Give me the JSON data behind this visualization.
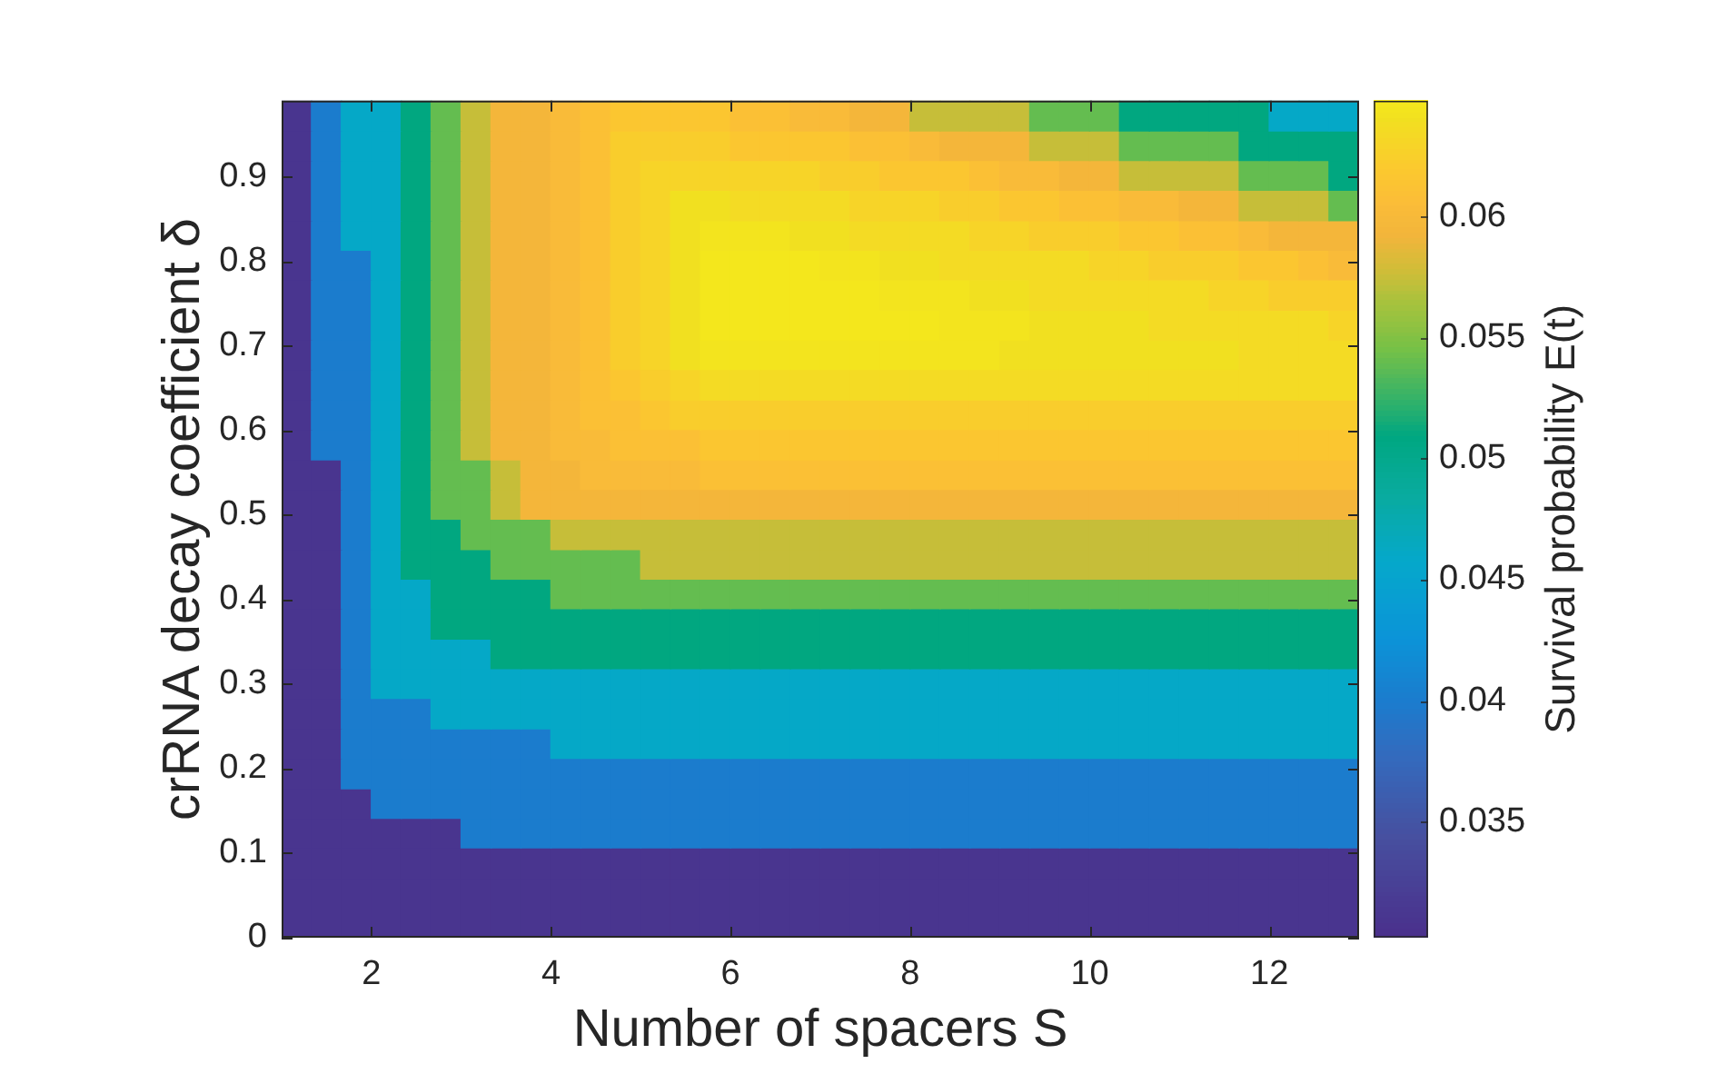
{
  "chart_data": {
    "type": "scatter",
    "marker": "square",
    "xlabel": "Number of spacers S",
    "ylabel": "crRNA decay coefficient δ",
    "clabel": "Survival probability E(t)",
    "x": [
      1.167,
      1.5,
      1.833,
      2.167,
      2.5,
      2.833,
      3.167,
      3.5,
      3.833,
      4.167,
      4.5,
      4.833,
      5.167,
      5.5,
      5.833,
      6.167,
      6.5,
      6.833,
      7.167,
      7.5,
      7.833,
      8.167,
      8.5,
      8.833,
      9.167,
      9.5,
      9.833,
      10.167,
      10.5,
      10.833,
      11.167,
      11.5,
      11.833,
      12.167,
      12.5,
      12.833,
      1.167,
      1.5,
      1.833,
      2.167,
      2.5,
      2.833,
      3.167,
      3.5,
      3.833,
      4.167,
      4.5,
      4.833,
      5.167,
      5.5,
      5.833,
      6.167,
      6.5,
      6.833,
      7.167,
      7.5,
      7.833,
      8.167,
      8.5,
      8.833,
      9.167,
      9.5,
      9.833,
      10.167,
      10.5,
      10.833,
      11.167,
      11.5,
      11.833,
      12.167,
      12.5,
      12.833,
      1.167,
      1.5,
      1.833,
      2.167,
      2.5,
      2.833,
      3.167,
      3.5,
      3.833,
      4.167,
      4.5,
      4.833,
      5.167,
      5.5,
      5.833,
      6.167,
      6.5,
      6.833,
      7.167,
      7.5,
      7.833,
      8.167,
      8.5,
      8.833,
      9.167,
      9.5,
      9.833,
      10.167,
      10.5,
      10.833,
      11.167,
      11.5,
      11.833,
      12.167,
      12.5,
      12.833,
      1.167,
      1.5,
      1.833,
      2.167,
      2.5,
      2.833,
      3.167,
      3.5,
      3.833,
      4.167,
      4.5,
      4.833,
      5.167,
      5.5,
      5.833,
      6.167,
      6.5,
      6.833,
      7.167,
      7.5,
      7.833,
      8.167,
      8.5,
      8.833,
      9.167,
      9.5,
      9.833,
      10.167,
      10.5,
      10.833,
      11.167,
      11.5,
      11.833,
      12.167,
      12.5,
      12.833,
      1.167,
      1.5,
      1.833,
      2.167,
      2.5,
      2.833,
      3.167,
      3.5,
      3.833,
      4.167,
      4.5,
      4.833,
      5.167,
      5.5,
      5.833,
      6.167,
      6.5,
      6.833,
      7.167,
      7.5,
      7.833,
      8.167,
      8.5,
      8.833,
      9.167,
      9.5,
      9.833,
      10.167,
      10.5,
      10.833,
      11.167,
      11.5,
      11.833,
      12.167,
      12.5,
      12.833,
      1.167,
      1.5,
      1.833,
      2.167,
      2.5,
      2.833,
      3.167,
      3.5,
      3.833,
      4.167,
      4.5,
      4.833,
      5.167,
      5.5,
      5.833,
      6.167,
      6.5,
      6.833,
      7.167,
      7.5,
      7.833,
      8.167,
      8.5,
      8.833,
      9.167,
      9.5,
      9.833,
      10.167,
      10.5,
      10.833,
      11.167,
      11.5,
      11.833,
      12.167,
      12.5,
      12.833,
      1.167,
      1.5,
      1.833,
      2.167,
      2.5,
      2.833,
      3.167,
      3.5,
      3.833,
      4.167,
      4.5,
      4.833,
      5.167,
      5.5,
      5.833,
      6.167,
      6.5,
      6.833,
      7.167,
      7.5,
      7.833,
      8.167,
      8.5,
      8.833,
      9.167,
      9.5,
      9.833,
      10.167,
      10.5,
      10.833,
      11.167,
      11.5,
      11.833,
      12.167,
      12.5,
      12.833,
      1.167,
      1.5,
      1.833,
      2.167,
      2.5,
      2.833,
      3.167,
      3.5,
      3.833,
      4.167,
      4.5,
      4.833,
      5.167,
      5.5,
      5.833,
      6.167,
      6.5,
      6.833,
      7.167,
      7.5,
      7.833,
      8.167,
      8.5,
      8.833,
      9.167,
      9.5,
      9.833,
      10.167,
      10.5,
      10.833,
      11.167,
      11.5,
      11.833,
      12.167,
      12.5,
      12.833,
      1.167,
      1.5,
      1.833,
      2.167,
      2.5,
      2.833,
      3.167,
      3.5,
      3.833,
      4.167,
      4.5,
      4.833,
      5.167,
      5.5,
      5.833,
      6.167,
      6.5,
      6.833,
      7.167,
      7.5,
      7.833,
      8.167,
      8.5,
      8.833,
      9.167,
      9.5,
      9.833,
      10.167,
      10.5,
      10.833,
      11.167,
      11.5,
      11.833,
      12.167,
      12.5,
      12.833,
      1.167,
      1.5,
      1.833,
      2.167,
      2.5,
      2.833,
      3.167,
      3.5,
      3.833,
      4.167,
      4.5,
      4.833,
      5.167,
      5.5,
      5.833,
      6.167,
      6.5,
      6.833,
      7.167,
      7.5,
      7.833,
      8.167,
      8.5,
      8.833,
      9.167,
      9.5,
      9.833,
      10.167,
      10.5,
      10.833,
      11.167,
      11.5,
      11.833,
      12.167,
      12.5,
      12.833,
      1.167,
      1.5,
      1.833,
      2.167,
      2.5,
      2.833,
      3.167,
      3.5,
      3.833,
      4.167,
      4.5,
      4.833,
      5.167,
      5.5,
      5.833,
      6.167,
      6.5,
      6.833,
      7.167,
      7.5,
      7.833,
      8.167,
      8.5,
      8.833,
      9.167,
      9.5,
      9.833,
      10.167,
      10.5,
      10.833,
      11.167,
      11.5,
      11.833,
      12.167,
      12.5,
      12.833,
      1.167,
      1.5,
      1.833,
      2.167,
      2.5,
      2.833,
      3.167,
      3.5,
      3.833,
      4.167,
      4.5,
      4.833,
      5.167,
      5.5,
      5.833,
      6.167,
      6.5,
      6.833,
      7.167,
      7.5,
      7.833,
      8.167,
      8.5,
      8.833,
      9.167,
      9.5,
      9.833,
      10.167,
      10.5,
      10.833,
      11.167,
      11.5,
      11.833,
      12.167,
      12.5,
      12.833,
      1.167,
      1.5,
      1.833,
      2.167,
      2.5,
      2.833,
      3.167,
      3.5,
      3.833,
      4.167,
      4.5,
      4.833,
      5.167,
      5.5,
      5.833,
      6.167,
      6.5,
      6.833,
      7.167,
      7.5,
      7.833,
      8.167,
      8.5,
      8.833,
      9.167,
      9.5,
      9.833,
      10.167,
      10.5,
      10.833,
      11.167,
      11.5,
      11.833,
      12.167,
      12.5,
      12.833,
      1.167,
      1.5,
      1.833,
      2.167,
      2.5,
      2.833,
      3.167,
      3.5,
      3.833,
      4.167,
      4.5,
      4.833,
      5.167,
      5.5,
      5.833,
      6.167,
      6.5,
      6.833,
      7.167,
      7.5,
      7.833,
      8.167,
      8.5,
      8.833,
      9.167,
      9.5,
      9.833,
      10.167,
      10.5,
      10.833,
      11.167,
      11.5,
      11.833,
      12.167,
      12.5,
      12.833,
      1.167,
      1.5,
      1.833,
      2.167,
      2.5,
      2.833,
      3.167,
      3.5,
      3.833,
      4.167,
      4.5,
      4.833,
      5.167,
      5.5,
      5.833,
      6.167,
      6.5,
      6.833,
      7.167,
      7.5,
      7.833,
      8.167,
      8.5,
      8.833,
      9.167,
      9.5,
      9.833,
      10.167,
      10.5,
      10.833,
      11.167,
      11.5,
      11.833,
      12.167,
      12.5,
      12.833,
      1.167,
      1.5,
      1.833,
      2.167,
      2.5,
      2.833,
      3.167,
      3.5,
      3.833,
      4.167,
      4.5,
      4.833,
      5.167,
      5.5,
      5.833,
      6.167,
      6.5,
      6.833,
      7.167,
      7.5,
      7.833,
      8.167,
      8.5,
      8.833,
      9.167,
      9.5,
      9.833,
      10.167,
      10.5,
      10.833,
      11.167,
      11.5,
      11.833,
      12.167,
      12.5,
      12.833,
      1.167,
      1.5,
      1.833,
      2.167,
      2.5,
      2.833,
      3.167,
      3.5,
      3.833,
      4.167,
      4.5,
      4.833,
      5.167,
      5.5,
      5.833,
      6.167,
      6.5,
      6.833,
      7.167,
      7.5,
      7.833,
      8.167,
      8.5,
      8.833,
      9.167,
      9.5,
      9.833,
      10.167,
      10.5,
      10.833,
      11.167,
      11.5,
      11.833,
      12.167,
      12.5,
      12.833,
      1.167,
      1.5,
      1.833,
      2.167,
      2.5,
      2.833,
      3.167,
      3.5,
      3.833,
      4.167,
      4.5,
      4.833,
      5.167,
      5.5,
      5.833,
      6.167,
      6.5,
      6.833,
      7.167,
      7.5,
      7.833,
      8.167,
      8.5,
      8.833,
      9.167,
      9.5,
      9.833,
      10.167,
      10.5,
      10.833,
      11.167,
      11.5,
      11.833,
      12.167,
      12.5,
      12.833,
      1.167,
      1.5,
      1.833,
      2.167,
      2.5,
      2.833,
      3.167,
      3.5,
      3.833,
      4.167,
      4.5,
      4.833,
      5.167,
      5.5,
      5.833,
      6.167,
      6.5,
      6.833,
      7.167,
      7.5,
      7.833,
      8.167,
      8.5,
      8.833,
      9.167,
      9.5,
      9.833,
      10.167,
      10.5,
      10.833,
      11.167,
      11.5,
      11.833,
      12.167,
      12.5,
      12.833,
      1.167,
      1.5,
      1.833,
      2.167,
      2.5,
      2.833,
      3.167,
      3.5,
      3.833,
      4.167,
      4.5,
      4.833,
      5.167,
      5.5,
      5.833,
      6.167,
      6.5,
      6.833,
      7.167,
      7.5,
      7.833,
      8.167,
      8.5,
      8.833,
      9.167,
      9.5,
      9.833,
      10.167,
      10.5,
      10.833,
      11.167,
      11.5,
      11.833,
      12.167,
      12.5,
      12.833,
      1.167,
      1.5,
      1.833,
      2.167,
      2.5,
      2.833,
      3.167,
      3.5,
      3.833,
      4.167,
      4.5,
      4.833,
      5.167,
      5.5,
      5.833,
      6.167,
      6.5,
      6.833,
      7.167,
      7.5,
      7.833,
      8.167,
      8.5,
      8.833,
      9.167,
      9.5,
      9.833,
      10.167,
      10.5,
      10.833,
      11.167,
      11.5,
      11.833,
      12.167,
      12.5,
      12.833,
      1.167,
      1.5,
      1.833,
      2.167,
      2.5,
      2.833,
      3.167,
      3.5,
      3.833,
      4.167,
      4.5,
      4.833,
      5.167,
      5.5,
      5.833,
      6.167,
      6.5,
      6.833,
      7.167,
      7.5,
      7.833,
      8.167,
      8.5,
      8.833,
      9.167,
      9.5,
      9.833,
      10.167,
      10.5,
      10.833,
      11.167,
      11.5,
      11.833,
      12.167,
      12.5,
      12.833,
      1.167,
      1.5,
      1.833,
      2.167,
      2.5,
      2.833,
      3.167,
      3.5,
      3.833,
      4.167,
      4.5,
      4.833,
      5.167,
      5.5,
      5.833,
      6.167,
      6.5,
      6.833,
      7.167,
      7.5,
      7.833,
      8.167,
      8.5,
      8.833,
      9.167,
      9.5,
      9.833,
      10.167,
      10.5,
      10.833,
      11.167,
      11.5,
      11.833,
      12.167,
      12.5,
      12.833,
      1.167,
      1.5,
      1.833,
      2.167,
      2.5,
      2.833,
      3.167,
      3.5,
      3.833,
      4.167,
      4.5,
      4.833,
      5.167,
      5.5,
      5.833,
      6.167,
      6.5,
      6.833,
      7.167,
      7.5,
      7.833,
      8.167,
      8.5,
      8.833,
      9.167,
      9.5,
      9.833,
      10.167,
      10.5,
      10.833,
      11.167,
      11.5,
      11.833,
      12.167,
      12.5,
      12.833,
      1.167,
      1.5,
      1.833,
      2.167,
      2.5,
      2.833,
      3.167,
      3.5,
      3.833,
      4.167,
      4.5,
      4.833,
      5.167,
      5.5,
      5.833,
      6.167,
      6.5,
      6.833,
      7.167,
      7.5,
      7.833,
      8.167,
      8.5,
      8.833,
      9.167,
      9.5,
      9.833,
      10.167,
      10.5,
      10.833,
      11.167,
      11.5,
      11.833,
      12.167,
      12.5,
      12.833,
      1.167,
      1.5,
      1.833,
      2.167,
      2.5,
      2.833,
      3.167,
      3.5,
      3.833,
      4.167,
      4.5,
      4.833,
      5.167,
      5.5,
      5.833,
      6.167,
      6.5,
      6.833,
      7.167,
      7.5,
      7.833,
      8.167,
      8.5,
      8.833,
      9.167,
      9.5,
      9.833,
      10.167,
      10.5,
      10.833,
      11.167,
      11.5,
      11.833,
      12.167,
      12.5,
      12.833,
      1.167,
      1.5,
      1.833,
      2.167,
      2.5,
      2.833,
      3.167,
      3.5,
      3.833,
      4.167,
      4.5,
      4.833,
      5.167,
      5.5,
      5.833,
      6.167,
      6.5,
      6.833,
      7.167,
      7.5,
      7.833,
      8.167,
      8.5,
      8.833,
      9.167,
      9.5,
      9.833,
      10.167,
      10.5,
      10.833,
      11.167,
      11.5,
      11.833,
      12.167,
      12.5,
      12.833,
      1.167,
      1.5,
      1.833,
      2.167,
      2.5,
      2.833,
      3.167,
      3.5,
      3.833,
      4.167,
      4.5,
      4.833,
      5.167,
      5.5,
      5.833,
      6.167,
      6.5,
      6.833,
      7.167,
      7.5,
      7.833,
      8.167,
      8.5,
      8.833,
      9.167,
      9.5,
      9.833,
      10.167,
      10.5,
      10.833,
      11.167,
      11.5,
      11.833,
      12.167,
      12.5,
      12.833
    ],
    "values": [
      0.018,
      0.018,
      0.018,
      0.018,
      0.018,
      0.018,
      0.018,
      0.018,
      0.018,
      0.018,
      0.018,
      0.018,
      0.018,
      0.018,
      0.018,
      0.018,
      0.018,
      0.018,
      0.018,
      0.018,
      0.018,
      0.018,
      0.018,
      0.018,
      0.018,
      0.018,
      0.018,
      0.018,
      0.018,
      0.018,
      0.018,
      0.018,
      0.018,
      0.018,
      0.018,
      0.018,
      0.053,
      0.053,
      0.053,
      0.053,
      0.053,
      0.053,
      0.053,
      0.053,
      0.053,
      0.053,
      0.053,
      0.053,
      0.053,
      0.053,
      0.053,
      0.053,
      0.053,
      0.053,
      0.053,
      0.053,
      0.053,
      0.053,
      0.053,
      0.053,
      0.053,
      0.053,
      0.053,
      0.053,
      0.053,
      0.053,
      0.053,
      0.053,
      0.053,
      0.053,
      0.053,
      0.053,
      0.088,
      0.088,
      0.088,
      0.088,
      0.088,
      0.088,
      0.088,
      0.088,
      0.088,
      0.088,
      0.088,
      0.088,
      0.088,
      0.088,
      0.088,
      0.088,
      0.088,
      0.088,
      0.088,
      0.088,
      0.088,
      0.088,
      0.088,
      0.088,
      0.088,
      0.088,
      0.088,
      0.088,
      0.088,
      0.088,
      0.088,
      0.088,
      0.088,
      0.088,
      0.088,
      0.088,
      0.124,
      0.124,
      0.124,
      0.124,
      0.124,
      0.124,
      0.124,
      0.124,
      0.124,
      0.124,
      0.124,
      0.124,
      0.124,
      0.124,
      0.124,
      0.124,
      0.124,
      0.124,
      0.124,
      0.124,
      0.124,
      0.124,
      0.124,
      0.124,
      0.124,
      0.124,
      0.124,
      0.124,
      0.124,
      0.124,
      0.124,
      0.124,
      0.124,
      0.124,
      0.124,
      0.124,
      0.159,
      0.159,
      0.159,
      0.159,
      0.159,
      0.159,
      0.159,
      0.159,
      0.159,
      0.159,
      0.159,
      0.159,
      0.159,
      0.159,
      0.159,
      0.159,
      0.159,
      0.159,
      0.159,
      0.159,
      0.159,
      0.159,
      0.159,
      0.159,
      0.159,
      0.159,
      0.159,
      0.159,
      0.159,
      0.159,
      0.159,
      0.159,
      0.159,
      0.159,
      0.159,
      0.159,
      0.194,
      0.194,
      0.194,
      0.194,
      0.194,
      0.194,
      0.194,
      0.194,
      0.194,
      0.194,
      0.194,
      0.194,
      0.194,
      0.194,
      0.194,
      0.194,
      0.194,
      0.194,
      0.194,
      0.194,
      0.194,
      0.194,
      0.194,
      0.194,
      0.194,
      0.194,
      0.194,
      0.194,
      0.194,
      0.194,
      0.194,
      0.194,
      0.194,
      0.194,
      0.194,
      0.194,
      0.23,
      0.23,
      0.23,
      0.23,
      0.23,
      0.23,
      0.23,
      0.23,
      0.23,
      0.23,
      0.23,
      0.23,
      0.23,
      0.23,
      0.23,
      0.23,
      0.23,
      0.23,
      0.23,
      0.23,
      0.23,
      0.23,
      0.23,
      0.23,
      0.23,
      0.23,
      0.23,
      0.23,
      0.23,
      0.23,
      0.23,
      0.23,
      0.23,
      0.23,
      0.23,
      0.23,
      0.265,
      0.265,
      0.265,
      0.265,
      0.265,
      0.265,
      0.265,
      0.265,
      0.265,
      0.265,
      0.265,
      0.265,
      0.265,
      0.265,
      0.265,
      0.265,
      0.265,
      0.265,
      0.265,
      0.265,
      0.265,
      0.265,
      0.265,
      0.265,
      0.265,
      0.265,
      0.265,
      0.265,
      0.265,
      0.265,
      0.265,
      0.265,
      0.265,
      0.265,
      0.265,
      0.265,
      0.301,
      0.301,
      0.301,
      0.301,
      0.301,
      0.301,
      0.301,
      0.301,
      0.301,
      0.301,
      0.301,
      0.301,
      0.301,
      0.301,
      0.301,
      0.301,
      0.301,
      0.301,
      0.301,
      0.301,
      0.301,
      0.301,
      0.301,
      0.301,
      0.301,
      0.301,
      0.301,
      0.301,
      0.301,
      0.301,
      0.301,
      0.301,
      0.301,
      0.301,
      0.301,
      0.301,
      0.336,
      0.336,
      0.336,
      0.336,
      0.336,
      0.336,
      0.336,
      0.336,
      0.336,
      0.336,
      0.336,
      0.336,
      0.336,
      0.336,
      0.336,
      0.336,
      0.336,
      0.336,
      0.336,
      0.336,
      0.336,
      0.336,
      0.336,
      0.336,
      0.336,
      0.336,
      0.336,
      0.336,
      0.336,
      0.336,
      0.336,
      0.336,
      0.336,
      0.336,
      0.336,
      0.336,
      0.371,
      0.371,
      0.371,
      0.371,
      0.371,
      0.371,
      0.371,
      0.371,
      0.371,
      0.371,
      0.371,
      0.371,
      0.371,
      0.371,
      0.371,
      0.371,
      0.371,
      0.371,
      0.371,
      0.371,
      0.371,
      0.371,
      0.371,
      0.371,
      0.371,
      0.371,
      0.371,
      0.371,
      0.371,
      0.371,
      0.371,
      0.371,
      0.371,
      0.371,
      0.371,
      0.371,
      0.407,
      0.407,
      0.407,
      0.407,
      0.407,
      0.407,
      0.407,
      0.407,
      0.407,
      0.407,
      0.407,
      0.407,
      0.407,
      0.407,
      0.407,
      0.407,
      0.407,
      0.407,
      0.407,
      0.407,
      0.407,
      0.407,
      0.407,
      0.407,
      0.407,
      0.407,
      0.407,
      0.407,
      0.407,
      0.407,
      0.407,
      0.407,
      0.407,
      0.407,
      0.407,
      0.407,
      0.442,
      0.442,
      0.442,
      0.442,
      0.442,
      0.442,
      0.442,
      0.442,
      0.442,
      0.442,
      0.442,
      0.442,
      0.442,
      0.442,
      0.442,
      0.442,
      0.442,
      0.442,
      0.442,
      0.442,
      0.442,
      0.442,
      0.442,
      0.442,
      0.442,
      0.442,
      0.442,
      0.442,
      0.442,
      0.442,
      0.442,
      0.442,
      0.442,
      0.442,
      0.442,
      0.442,
      0.477,
      0.477,
      0.477,
      0.477,
      0.477,
      0.477,
      0.477,
      0.477,
      0.477,
      0.477,
      0.477,
      0.477,
      0.477,
      0.477,
      0.477,
      0.477,
      0.477,
      0.477,
      0.477,
      0.477,
      0.477,
      0.477,
      0.477,
      0.477,
      0.477,
      0.477,
      0.477,
      0.477,
      0.477,
      0.477,
      0.477,
      0.477,
      0.477,
      0.477,
      0.477,
      0.477,
      0.513,
      0.513,
      0.513,
      0.513,
      0.513,
      0.513,
      0.513,
      0.513,
      0.513,
      0.513,
      0.513,
      0.513,
      0.513,
      0.513,
      0.513,
      0.513,
      0.513,
      0.513,
      0.513,
      0.513,
      0.513,
      0.513,
      0.513,
      0.513,
      0.513,
      0.513,
      0.513,
      0.513,
      0.513,
      0.513,
      0.513,
      0.513,
      0.513,
      0.513,
      0.513,
      0.513,
      0.548,
      0.548,
      0.548,
      0.548,
      0.548,
      0.548,
      0.548,
      0.548,
      0.548,
      0.548,
      0.548,
      0.548,
      0.548,
      0.548,
      0.548,
      0.548,
      0.548,
      0.548,
      0.548,
      0.548,
      0.548,
      0.548,
      0.548,
      0.548,
      0.548,
      0.548,
      0.548,
      0.548,
      0.548,
      0.548,
      0.548,
      0.548,
      0.548,
      0.548,
      0.548,
      0.548,
      0.583,
      0.583,
      0.583,
      0.583,
      0.583,
      0.583,
      0.583,
      0.583,
      0.583,
      0.583,
      0.583,
      0.583,
      0.583,
      0.583,
      0.583,
      0.583,
      0.583,
      0.583,
      0.583,
      0.583,
      0.583,
      0.583,
      0.583,
      0.583,
      0.583,
      0.583,
      0.583,
      0.583,
      0.583,
      0.583,
      0.583,
      0.583,
      0.583,
      0.583,
      0.583,
      0.583,
      0.619,
      0.619,
      0.619,
      0.619,
      0.619,
      0.619,
      0.619,
      0.619,
      0.619,
      0.619,
      0.619,
      0.619,
      0.619,
      0.619,
      0.619,
      0.619,
      0.619,
      0.619,
      0.619,
      0.619,
      0.619,
      0.619,
      0.619,
      0.619,
      0.619,
      0.619,
      0.619,
      0.619,
      0.619,
      0.619,
      0.619,
      0.619,
      0.619,
      0.619,
      0.619,
      0.619,
      0.654,
      0.654,
      0.654,
      0.654,
      0.654,
      0.654,
      0.654,
      0.654,
      0.654,
      0.654,
      0.654,
      0.654,
      0.654,
      0.654,
      0.654,
      0.654,
      0.654,
      0.654,
      0.654,
      0.654,
      0.654,
      0.654,
      0.654,
      0.654,
      0.654,
      0.654,
      0.654,
      0.654,
      0.654,
      0.654,
      0.654,
      0.654,
      0.654,
      0.654,
      0.654,
      0.654,
      0.69,
      0.69,
      0.69,
      0.69,
      0.69,
      0.69,
      0.69,
      0.69,
      0.69,
      0.69,
      0.69,
      0.69,
      0.69,
      0.69,
      0.69,
      0.69,
      0.69,
      0.69,
      0.69,
      0.69,
      0.69,
      0.69,
      0.69,
      0.69,
      0.69,
      0.69,
      0.69,
      0.69,
      0.69,
      0.69,
      0.69,
      0.69,
      0.69,
      0.69,
      0.69,
      0.69,
      0.725,
      0.725,
      0.725,
      0.725,
      0.725,
      0.725,
      0.725,
      0.725,
      0.725,
      0.725,
      0.725,
      0.725,
      0.725,
      0.725,
      0.725,
      0.725,
      0.725,
      0.725,
      0.725,
      0.725,
      0.725,
      0.725,
      0.725,
      0.725,
      0.725,
      0.725,
      0.725,
      0.725,
      0.725,
      0.725,
      0.725,
      0.725,
      0.725,
      0.725,
      0.725,
      0.725,
      0.76,
      0.76,
      0.76,
      0.76,
      0.76,
      0.76,
      0.76,
      0.76,
      0.76,
      0.76,
      0.76,
      0.76,
      0.76,
      0.76,
      0.76,
      0.76,
      0.76,
      0.76,
      0.76,
      0.76,
      0.76,
      0.76,
      0.76,
      0.76,
      0.76,
      0.76,
      0.76,
      0.76,
      0.76,
      0.76,
      0.76,
      0.76,
      0.76,
      0.76,
      0.76,
      0.76,
      0.796,
      0.796,
      0.796,
      0.796,
      0.796,
      0.796,
      0.796,
      0.796,
      0.796,
      0.796,
      0.796,
      0.796,
      0.796,
      0.796,
      0.796,
      0.796,
      0.796,
      0.796,
      0.796,
      0.796,
      0.796,
      0.796,
      0.796,
      0.796,
      0.796,
      0.796,
      0.796,
      0.796,
      0.796,
      0.796,
      0.796,
      0.796,
      0.796,
      0.796,
      0.796,
      0.796,
      0.831,
      0.831,
      0.831,
      0.831,
      0.831,
      0.831,
      0.831,
      0.831,
      0.831,
      0.831,
      0.831,
      0.831,
      0.831,
      0.831,
      0.831,
      0.831,
      0.831,
      0.831,
      0.831,
      0.831,
      0.831,
      0.831,
      0.831,
      0.831,
      0.831,
      0.831,
      0.831,
      0.831,
      0.831,
      0.831,
      0.831,
      0.831,
      0.831,
      0.831,
      0.831,
      0.831,
      0.866,
      0.866,
      0.866,
      0.866,
      0.866,
      0.866,
      0.866,
      0.866,
      0.866,
      0.866,
      0.866,
      0.866,
      0.866,
      0.866,
      0.866,
      0.866,
      0.866,
      0.866,
      0.866,
      0.866,
      0.866,
      0.866,
      0.866,
      0.866,
      0.866,
      0.866,
      0.866,
      0.866,
      0.866,
      0.866,
      0.866,
      0.866,
      0.866,
      0.866,
      0.866,
      0.866,
      0.902,
      0.902,
      0.902,
      0.902,
      0.902,
      0.902,
      0.902,
      0.902,
      0.902,
      0.902,
      0.902,
      0.902,
      0.902,
      0.902,
      0.902,
      0.902,
      0.902,
      0.902,
      0.902,
      0.902,
      0.902,
      0.902,
      0.902,
      0.902,
      0.902,
      0.902,
      0.902,
      0.902,
      0.902,
      0.902,
      0.902,
      0.902,
      0.902,
      0.902,
      0.902,
      0.902,
      0.937,
      0.937,
      0.937,
      0.937,
      0.937,
      0.937,
      0.937,
      0.937,
      0.937,
      0.937,
      0.937,
      0.937,
      0.937,
      0.937,
      0.937,
      0.937,
      0.937,
      0.937,
      0.937,
      0.937,
      0.937,
      0.937,
      0.937,
      0.937,
      0.937,
      0.937,
      0.937,
      0.937,
      0.937,
      0.937,
      0.937,
      0.937,
      0.937,
      0.937,
      0.937,
      0.937,
      0.972,
      0.972,
      0.972,
      0.972,
      0.972,
      0.972,
      0.972,
      0.972,
      0.972,
      0.972,
      0.972,
      0.972,
      0.972,
      0.972,
      0.972,
      0.972,
      0.972,
      0.972,
      0.972,
      0.972,
      0.972,
      0.972,
      0.972,
      0.972,
      0.972,
      0.972,
      0.972,
      0.972,
      0.972,
      0.972,
      0.972,
      0.972,
      0.972,
      0.972,
      0.972,
      0.972
    ],
    "cvalues": [
      0.031,
      0.031,
      0.031,
      0.031,
      0.031,
      0.031,
      0.031,
      0.031,
      0.031,
      0.031,
      0.031,
      0.031,
      0.031,
      0.031,
      0.031,
      0.031,
      0.031,
      0.031,
      0.031,
      0.031,
      0.031,
      0.031,
      0.031,
      0.031,
      0.031,
      0.031,
      0.031,
      0.031,
      0.031,
      0.031,
      0.031,
      0.031,
      0.031,
      0.031,
      0.031,
      0.031,
      0.031,
      0.031,
      0.031,
      0.031,
      0.031,
      0.031,
      0.031,
      0.031,
      0.031,
      0.031,
      0.031,
      0.031,
      0.031,
      0.031,
      0.031,
      0.031,
      0.031,
      0.031,
      0.031,
      0.031,
      0.031,
      0.031,
      0.031,
      0.031,
      0.031,
      0.031,
      0.031,
      0.031,
      0.031,
      0.031,
      0.031,
      0.031,
      0.031,
      0.031,
      0.031,
      0.031,
      0.031,
      0.031,
      0.031,
      0.031,
      0.031,
      0.031,
      0.031,
      0.031,
      0.031,
      0.031,
      0.031,
      0.031,
      0.031,
      0.031,
      0.031,
      0.031,
      0.031,
      0.031,
      0.031,
      0.031,
      0.031,
      0.031,
      0.031,
      0.031,
      0.031,
      0.031,
      0.031,
      0.031,
      0.031,
      0.031,
      0.031,
      0.031,
      0.031,
      0.031,
      0.031,
      0.031,
      0.031,
      0.031,
      0.031,
      0.031,
      0.031,
      0.031,
      0.04,
      0.04,
      0.04,
      0.04,
      0.04,
      0.04,
      0.04,
      0.04,
      0.04,
      0.04,
      0.04,
      0.04,
      0.04,
      0.04,
      0.04,
      0.04,
      0.04,
      0.04,
      0.04,
      0.04,
      0.04,
      0.04,
      0.04,
      0.04,
      0.04,
      0.04,
      0.04,
      0.04,
      0.04,
      0.04,
      0.031,
      0.031,
      0.031,
      0.04,
      0.04,
      0.04,
      0.04,
      0.04,
      0.04,
      0.04,
      0.04,
      0.04,
      0.04,
      0.04,
      0.04,
      0.04,
      0.04,
      0.04,
      0.04,
      0.04,
      0.04,
      0.04,
      0.04,
      0.04,
      0.04,
      0.04,
      0.04,
      0.04,
      0.04,
      0.04,
      0.04,
      0.04,
      0.04,
      0.04,
      0.04,
      0.04,
      0.031,
      0.031,
      0.04,
      0.04,
      0.04,
      0.04,
      0.04,
      0.04,
      0.04,
      0.04,
      0.04,
      0.04,
      0.04,
      0.04,
      0.04,
      0.04,
      0.04,
      0.04,
      0.04,
      0.04,
      0.04,
      0.04,
      0.04,
      0.04,
      0.04,
      0.04,
      0.04,
      0.04,
      0.04,
      0.04,
      0.04,
      0.04,
      0.04,
      0.04,
      0.04,
      0.04,
      0.031,
      0.031,
      0.04,
      0.04,
      0.04,
      0.04,
      0.04,
      0.04,
      0.04,
      0.046,
      0.046,
      0.046,
      0.046,
      0.046,
      0.046,
      0.046,
      0.046,
      0.046,
      0.046,
      0.046,
      0.046,
      0.046,
      0.046,
      0.046,
      0.046,
      0.046,
      0.046,
      0.046,
      0.046,
      0.046,
      0.046,
      0.046,
      0.046,
      0.046,
      0.046,
      0.046,
      0.031,
      0.031,
      0.04,
      0.04,
      0.04,
      0.046,
      0.046,
      0.046,
      0.046,
      0.046,
      0.046,
      0.046,
      0.046,
      0.046,
      0.046,
      0.046,
      0.046,
      0.046,
      0.046,
      0.046,
      0.046,
      0.046,
      0.046,
      0.046,
      0.046,
      0.046,
      0.046,
      0.046,
      0.046,
      0.046,
      0.046,
      0.046,
      0.046,
      0.046,
      0.046,
      0.046,
      0.031,
      0.031,
      0.04,
      0.046,
      0.046,
      0.046,
      0.046,
      0.046,
      0.046,
      0.046,
      0.046,
      0.046,
      0.046,
      0.046,
      0.046,
      0.046,
      0.046,
      0.046,
      0.046,
      0.046,
      0.046,
      0.046,
      0.046,
      0.046,
      0.046,
      0.046,
      0.046,
      0.046,
      0.046,
      0.046,
      0.046,
      0.046,
      0.046,
      0.046,
      0.046,
      0.046,
      0.031,
      0.031,
      0.04,
      0.046,
      0.046,
      0.046,
      0.046,
      0.051,
      0.051,
      0.051,
      0.051,
      0.051,
      0.051,
      0.051,
      0.051,
      0.051,
      0.051,
      0.051,
      0.051,
      0.051,
      0.051,
      0.051,
      0.051,
      0.051,
      0.051,
      0.051,
      0.051,
      0.051,
      0.051,
      0.051,
      0.051,
      0.051,
      0.051,
      0.051,
      0.051,
      0.051,
      0.031,
      0.031,
      0.04,
      0.046,
      0.046,
      0.051,
      0.051,
      0.051,
      0.051,
      0.051,
      0.051,
      0.051,
      0.051,
      0.051,
      0.051,
      0.051,
      0.051,
      0.051,
      0.051,
      0.051,
      0.051,
      0.051,
      0.051,
      0.051,
      0.051,
      0.051,
      0.051,
      0.051,
      0.051,
      0.051,
      0.051,
      0.051,
      0.051,
      0.051,
      0.051,
      0.051,
      0.031,
      0.031,
      0.04,
      0.046,
      0.046,
      0.051,
      0.051,
      0.051,
      0.051,
      0.054,
      0.054,
      0.054,
      0.054,
      0.054,
      0.054,
      0.054,
      0.054,
      0.054,
      0.054,
      0.054,
      0.054,
      0.054,
      0.054,
      0.054,
      0.054,
      0.054,
      0.054,
      0.054,
      0.054,
      0.054,
      0.054,
      0.054,
      0.054,
      0.054,
      0.054,
      0.054,
      0.031,
      0.031,
      0.04,
      0.046,
      0.051,
      0.051,
      0.051,
      0.054,
      0.054,
      0.054,
      0.054,
      0.054,
      0.0575,
      0.0575,
      0.0575,
      0.0575,
      0.0575,
      0.0575,
      0.0575,
      0.0575,
      0.0575,
      0.0575,
      0.0575,
      0.0575,
      0.0575,
      0.0575,
      0.0575,
      0.0575,
      0.0575,
      0.0575,
      0.0575,
      0.0575,
      0.0575,
      0.0575,
      0.0575,
      0.0575,
      0.031,
      0.031,
      0.04,
      0.046,
      0.051,
      0.051,
      0.054,
      0.054,
      0.054,
      0.0575,
      0.0575,
      0.0575,
      0.0575,
      0.0575,
      0.0575,
      0.0575,
      0.0575,
      0.0575,
      0.0575,
      0.0575,
      0.0575,
      0.0575,
      0.0575,
      0.0575,
      0.0575,
      0.0575,
      0.0575,
      0.0575,
      0.0575,
      0.0575,
      0.0575,
      0.0575,
      0.0575,
      0.0575,
      0.0575,
      0.0575,
      0.031,
      0.031,
      0.04,
      0.046,
      0.051,
      0.054,
      0.054,
      0.0575,
      0.0595,
      0.0595,
      0.0595,
      0.0595,
      0.0595,
      0.0595,
      0.0595,
      0.0595,
      0.0595,
      0.0595,
      0.0595,
      0.0595,
      0.0595,
      0.0595,
      0.0595,
      0.0595,
      0.0595,
      0.0595,
      0.0595,
      0.0595,
      0.0595,
      0.0595,
      0.0595,
      0.0595,
      0.0595,
      0.0595,
      0.0595,
      0.0595,
      0.031,
      0.031,
      0.04,
      0.046,
      0.051,
      0.054,
      0.054,
      0.0575,
      0.0595,
      0.0595,
      0.0603,
      0.0603,
      0.0603,
      0.0603,
      0.061,
      0.061,
      0.061,
      0.061,
      0.061,
      0.061,
      0.061,
      0.061,
      0.061,
      0.061,
      0.061,
      0.061,
      0.061,
      0.061,
      0.061,
      0.061,
      0.061,
      0.061,
      0.061,
      0.061,
      0.061,
      0.061,
      0.031,
      0.04,
      0.04,
      0.046,
      0.051,
      0.054,
      0.0575,
      0.0595,
      0.0595,
      0.0603,
      0.0603,
      0.061,
      0.061,
      0.061,
      0.0617,
      0.0617,
      0.0617,
      0.0617,
      0.0617,
      0.0617,
      0.0617,
      0.0617,
      0.0617,
      0.0617,
      0.0617,
      0.0617,
      0.0617,
      0.0617,
      0.0617,
      0.0617,
      0.0617,
      0.0617,
      0.0617,
      0.0617,
      0.0617,
      0.0617,
      0.031,
      0.04,
      0.04,
      0.046,
      0.051,
      0.054,
      0.0575,
      0.0595,
      0.0595,
      0.0603,
      0.061,
      0.061,
      0.0617,
      0.0624,
      0.0624,
      0.0624,
      0.0624,
      0.0624,
      0.0624,
      0.0624,
      0.0624,
      0.0624,
      0.0624,
      0.0624,
      0.0624,
      0.0624,
      0.0624,
      0.0624,
      0.0624,
      0.0624,
      0.0624,
      0.0624,
      0.0624,
      0.0624,
      0.0624,
      0.0624,
      0.031,
      0.04,
      0.04,
      0.046,
      0.051,
      0.054,
      0.0575,
      0.0595,
      0.0595,
      0.0603,
      0.061,
      0.0617,
      0.0624,
      0.063,
      0.0636,
      0.0636,
      0.0636,
      0.0636,
      0.0636,
      0.0636,
      0.0636,
      0.0636,
      0.0636,
      0.0636,
      0.0636,
      0.0636,
      0.0636,
      0.0636,
      0.0636,
      0.0636,
      0.0636,
      0.0636,
      0.0636,
      0.0636,
      0.0636,
      0.0636,
      0.031,
      0.04,
      0.04,
      0.046,
      0.051,
      0.054,
      0.0575,
      0.0595,
      0.0595,
      0.0603,
      0.061,
      0.0624,
      0.063,
      0.0641,
      0.0645,
      0.0645,
      0.0645,
      0.0645,
      0.0645,
      0.0645,
      0.0645,
      0.0645,
      0.0645,
      0.0645,
      0.0641,
      0.0641,
      0.0641,
      0.0641,
      0.0641,
      0.0641,
      0.0641,
      0.0641,
      0.0636,
      0.0636,
      0.0636,
      0.0636,
      0.031,
      0.04,
      0.04,
      0.046,
      0.051,
      0.054,
      0.0575,
      0.0595,
      0.0595,
      0.0603,
      0.061,
      0.0624,
      0.063,
      0.0641,
      0.0648,
      0.0648,
      0.0648,
      0.0648,
      0.0648,
      0.0648,
      0.0648,
      0.0648,
      0.0645,
      0.0645,
      0.0645,
      0.0641,
      0.0641,
      0.0641,
      0.0641,
      0.0636,
      0.0636,
      0.0636,
      0.0636,
      0.0636,
      0.0636,
      0.063,
      0.031,
      0.04,
      0.04,
      0.046,
      0.051,
      0.054,
      0.0575,
      0.0595,
      0.0595,
      0.0603,
      0.061,
      0.0624,
      0.063,
      0.0641,
      0.0648,
      0.0648,
      0.0648,
      0.0648,
      0.0648,
      0.0648,
      0.0645,
      0.0645,
      0.0645,
      0.0641,
      0.0641,
      0.0636,
      0.0636,
      0.0636,
      0.0636,
      0.0636,
      0.0636,
      0.063,
      0.063,
      0.0624,
      0.0624,
      0.0624,
      0.031,
      0.04,
      0.04,
      0.046,
      0.051,
      0.054,
      0.0575,
      0.0595,
      0.0595,
      0.0603,
      0.061,
      0.0624,
      0.063,
      0.0641,
      0.0648,
      0.0648,
      0.0648,
      0.0648,
      0.0645,
      0.0645,
      0.0641,
      0.0641,
      0.0636,
      0.0636,
      0.0636,
      0.0636,
      0.0636,
      0.063,
      0.063,
      0.0624,
      0.0624,
      0.0624,
      0.0617,
      0.0617,
      0.061,
      0.0603,
      0.031,
      0.04,
      0.046,
      0.046,
      0.051,
      0.054,
      0.0575,
      0.0595,
      0.0595,
      0.0603,
      0.061,
      0.0624,
      0.063,
      0.0641,
      0.0645,
      0.0645,
      0.0645,
      0.0641,
      0.0641,
      0.0636,
      0.0636,
      0.0636,
      0.0636,
      0.063,
      0.063,
      0.0624,
      0.0624,
      0.0624,
      0.0617,
      0.0617,
      0.061,
      0.061,
      0.0603,
      0.0595,
      0.0595,
      0.0595,
      0.031,
      0.04,
      0.046,
      0.046,
      0.051,
      0.054,
      0.0575,
      0.0595,
      0.0595,
      0.0603,
      0.061,
      0.0624,
      0.063,
      0.0641,
      0.0641,
      0.0636,
      0.0636,
      0.0636,
      0.0636,
      0.063,
      0.063,
      0.063,
      0.0624,
      0.0624,
      0.0617,
      0.0617,
      0.061,
      0.061,
      0.0603,
      0.0603,
      0.0595,
      0.0595,
      0.0575,
      0.0575,
      0.0575,
      0.054,
      0.031,
      0.04,
      0.046,
      0.046,
      0.051,
      0.054,
      0.0575,
      0.0595,
      0.0595,
      0.0603,
      0.061,
      0.0624,
      0.063,
      0.063,
      0.063,
      0.063,
      0.063,
      0.063,
      0.0624,
      0.0624,
      0.0617,
      0.0617,
      0.0617,
      0.061,
      0.0603,
      0.0603,
      0.0595,
      0.0595,
      0.0575,
      0.0575,
      0.0575,
      0.0575,
      0.054,
      0.054,
      0.054,
      0.051,
      0.031,
      0.04,
      0.046,
      0.046,
      0.051,
      0.054,
      0.0575,
      0.0595,
      0.0595,
      0.0603,
      0.061,
      0.0624,
      0.0624,
      0.0624,
      0.0624,
      0.0617,
      0.0617,
      0.0617,
      0.0617,
      0.061,
      0.061,
      0.0603,
      0.0595,
      0.0595,
      0.0595,
      0.0575,
      0.0575,
      0.0575,
      0.054,
      0.054,
      0.054,
      0.054,
      0.051,
      0.051,
      0.051,
      0.051,
      0.031,
      0.04,
      0.046,
      0.046,
      0.051,
      0.054,
      0.0575,
      0.0595,
      0.0595,
      0.0603,
      0.061,
      0.0617,
      0.0617,
      0.0617,
      0.0617,
      0.061,
      0.061,
      0.0603,
      0.0603,
      0.0595,
      0.0595,
      0.0575,
      0.0575,
      0.0575,
      0.0575,
      0.054,
      0.054,
      0.054,
      0.051,
      0.051,
      0.051,
      0.051,
      0.051,
      0.046,
      0.046,
      0.046
    ],
    "xlim": [
      1,
      13
    ],
    "xticks": [
      2,
      4,
      6,
      8,
      10,
      12
    ],
    "ylim": [
      0,
      0.99
    ],
    "yticks": [
      0,
      0.1,
      0.2,
      0.3,
      0.4,
      0.5,
      0.6,
      0.7,
      0.8,
      0.9
    ],
    "clim": [
      0.0302,
      0.0648
    ],
    "cticks": [
      0.035,
      0.04,
      0.045,
      0.05,
      0.055,
      0.06
    ]
  }
}
